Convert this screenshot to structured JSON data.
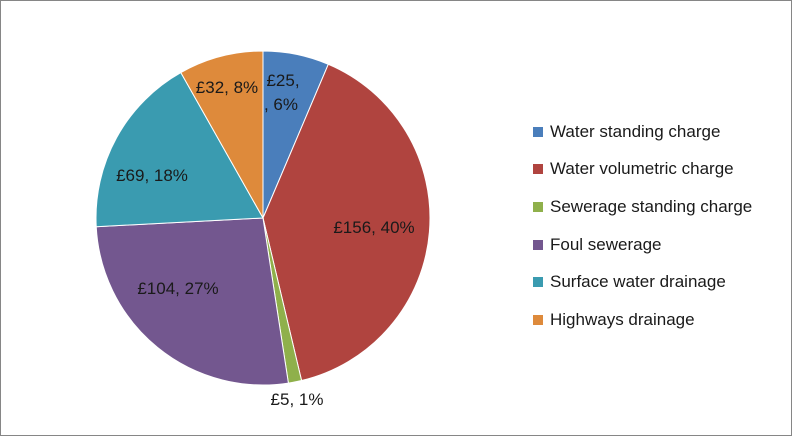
{
  "chart_data": {
    "type": "pie",
    "title": "",
    "slices": [
      {
        "name": "Water standing charge",
        "value": 25,
        "percent": 6,
        "label": "£25, 6%",
        "color": "#4a7ebb"
      },
      {
        "name": "Water volumetric charge",
        "value": 156,
        "percent": 40,
        "label": "£156, 40%",
        "color": "#b0443f"
      },
      {
        "name": "Sewerage standing charge",
        "value": 5,
        "percent": 1,
        "label": "£5, 1%",
        "color": "#8fb04b"
      },
      {
        "name": "Foul sewerage",
        "value": 104,
        "percent": 27,
        "label": "£104, 27%",
        "color": "#73578f"
      },
      {
        "name": "Surface water drainage",
        "value": 69,
        "percent": 18,
        "label": "£69, 18%",
        "color": "#3a9bb0"
      },
      {
        "name": "Highways drainage",
        "value": 32,
        "percent": 8,
        "label": "£32, 8%",
        "color": "#de8a3b"
      }
    ],
    "legend_position": "right"
  }
}
